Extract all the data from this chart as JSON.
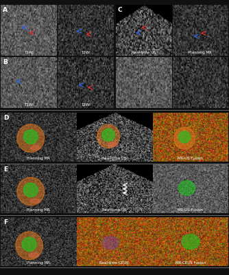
{
  "panel_labels": [
    "A",
    "B",
    "C",
    "D",
    "E",
    "F"
  ],
  "row_D_labels": [
    "Planning MR",
    "Real-time US",
    "MR-US Fusion"
  ],
  "row_E_labels": [
    "Planning MR",
    "Real-time US",
    "MR-US Fusion"
  ],
  "row_F_labels": [
    "Planning MR",
    "Real-time CEUS",
    "MR-CEUS Fusion"
  ],
  "row_A_sublabels": [
    "T1WI",
    "T2WI"
  ],
  "row_B_sublabels": [
    "T1WI",
    "T2WI"
  ],
  "row_C_sublabels_top": [
    "Real-time US",
    "Planning MR"
  ],
  "bg_color": "#111111",
  "panel_label_color": "white",
  "sub_label_color": "white",
  "orange_circle_color": "#E07820",
  "green_circle_color": "#20C020",
  "pink_small_color": "#D05070",
  "purple_color": "#8040A0"
}
